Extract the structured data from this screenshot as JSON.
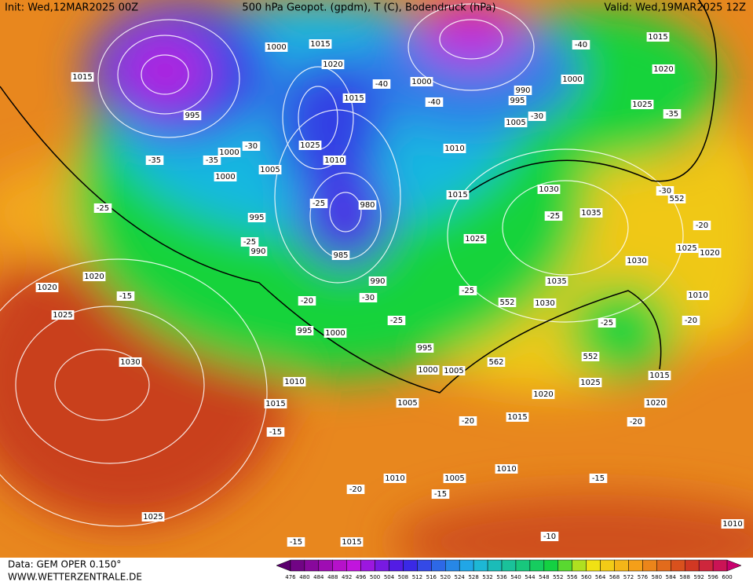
{
  "header": {
    "init": "Init: Wed,12MAR2025 00Z",
    "title": "500 hPa Geopot. (gpdm), T (C), Bodendruck (hPa)",
    "valid": "Valid: Wed,19MAR2025 12Z"
  },
  "footer": {
    "data": "Data: GEM OPER 0.150°",
    "site": "WWW.WETTERZENTRALE.DE"
  },
  "colorbar": {
    "values": [
      476,
      480,
      484,
      488,
      492,
      496,
      500,
      504,
      508,
      512,
      516,
      520,
      524,
      528,
      532,
      536,
      540,
      544,
      548,
      552,
      556,
      560,
      564,
      568,
      572,
      576,
      580,
      584,
      588,
      592,
      596,
      600
    ]
  },
  "pressure_labels": [
    "1015",
    "1000",
    "1015",
    "1020",
    "1015",
    "995",
    "1025",
    "1000",
    "1010",
    "1005",
    "1000",
    "980",
    "995",
    "990",
    "985",
    "990",
    "995",
    "1000",
    "995",
    "1000",
    "1005",
    "1010",
    "1015",
    "1005",
    "1015",
    "1020",
    "1025",
    "1015",
    "1020",
    "1010",
    "1025",
    "1020",
    "1030",
    "1035",
    "1030",
    "1035",
    "1030",
    "1025",
    "1015",
    "1010",
    "1005",
    "1000",
    "995",
    "990",
    "1000",
    "1015",
    "1020",
    "1025",
    "1020",
    "1020",
    "1025",
    "1030",
    "1025",
    "1010",
    "1005",
    "1010",
    "1015",
    "1010"
  ],
  "temperature_labels": [
    "-35",
    "-30",
    "-35",
    "-25",
    "-25",
    "-25",
    "-40",
    "-40",
    "-40",
    "-30",
    "-35",
    "-30",
    "-20",
    "-25",
    "-25",
    "-30",
    "-20",
    "-25",
    "-15",
    "-25",
    "-20",
    "-15",
    "-20",
    "-20",
    "-15",
    "-15",
    "-20",
    "-15",
    "-10"
  ],
  "height_labels": [
    "552",
    "552",
    "552",
    "562"
  ]
}
